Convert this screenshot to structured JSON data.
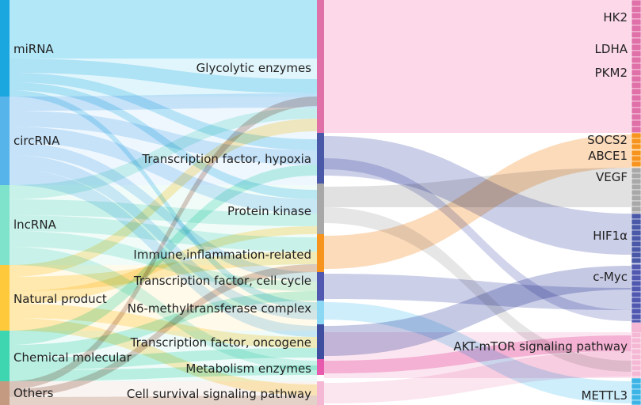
{
  "diagram": {
    "sources": [
      {
        "id": "mirna",
        "label": "miRNA",
        "color": "#1aa7e0",
        "band": "#a9e4f7"
      },
      {
        "id": "circrna",
        "label": "circRNA",
        "color": "#56b4ea",
        "band": "#cfe8fb"
      },
      {
        "id": "lncrna",
        "label": "lncRNA",
        "color": "#7fe3cc",
        "band": "#d6f6ee"
      },
      {
        "id": "natural",
        "label": "Natural product",
        "color": "#ffc93c",
        "band": "#fff0c4"
      },
      {
        "id": "chemical",
        "label": "Chemical molecular",
        "color": "#3dd6b0",
        "band": "#cdf4ea"
      },
      {
        "id": "others",
        "label": "Others",
        "color": "#c49a80",
        "band": "#eee0d7"
      }
    ],
    "categories": [
      {
        "id": "glyco",
        "label": "Glycolytic enzymes",
        "color": "#e070a8",
        "band": "#fcd6e8"
      },
      {
        "id": "tfhyp",
        "label": "Transcription factor, hypoxia",
        "color": "#4a58a8",
        "band": "#c8cce8"
      },
      {
        "id": "pk",
        "label": "Protein kinase",
        "color": "#a8a8a8",
        "band": "#dcdcdc"
      },
      {
        "id": "immune",
        "label": "Immune,inflammation-related",
        "color": "#f7941d",
        "band": "#fcd4a4"
      },
      {
        "id": "tfcc",
        "label": "Transcription factor, cell cycle",
        "color": "#5058b0",
        "band": "#c9ccec"
      },
      {
        "id": "n6",
        "label": "N6-methyltransferase complex",
        "color": "#8ad8f4",
        "band": "#d6f1fb"
      },
      {
        "id": "tfonc",
        "label": "Transcription factor, oncogene",
        "color": "#3f4fa0",
        "band": "#c6cbe6"
      },
      {
        "id": "metab",
        "label": "Metabolism enzymes",
        "color": "#e85aae",
        "band": "#f8cde5"
      },
      {
        "id": "csp",
        "label": "Cell survival signaling pathway",
        "color": "#f4b8d4",
        "band": "#fbe4ef"
      }
    ],
    "targets": [
      {
        "id": "hk2",
        "label": "HK2",
        "color": "#e070a8"
      },
      {
        "id": "ldha",
        "label": "LDHA",
        "color": "#e070a8"
      },
      {
        "id": "pkm2",
        "label": "PKM2",
        "color": "#e070a8"
      },
      {
        "id": "socs2",
        "label": "SOCS2",
        "color": "#f7941d"
      },
      {
        "id": "abce1",
        "label": "ABCE1",
        "color": "#f7941d"
      },
      {
        "id": "vegf",
        "label": "VEGF",
        "color": "#a8a8a8"
      },
      {
        "id": "hif1a",
        "label": "HIF1α",
        "color": "#4a58a8"
      },
      {
        "id": "cmyc",
        "label": "c-Myc",
        "color": "#5058b0"
      },
      {
        "id": "aktmtor",
        "label": "AKT-mTOR signaling pathway",
        "color": "#f4b8d4"
      },
      {
        "id": "mettl3",
        "label": "METTL3",
        "color": "#3cb4e6"
      }
    ]
  }
}
